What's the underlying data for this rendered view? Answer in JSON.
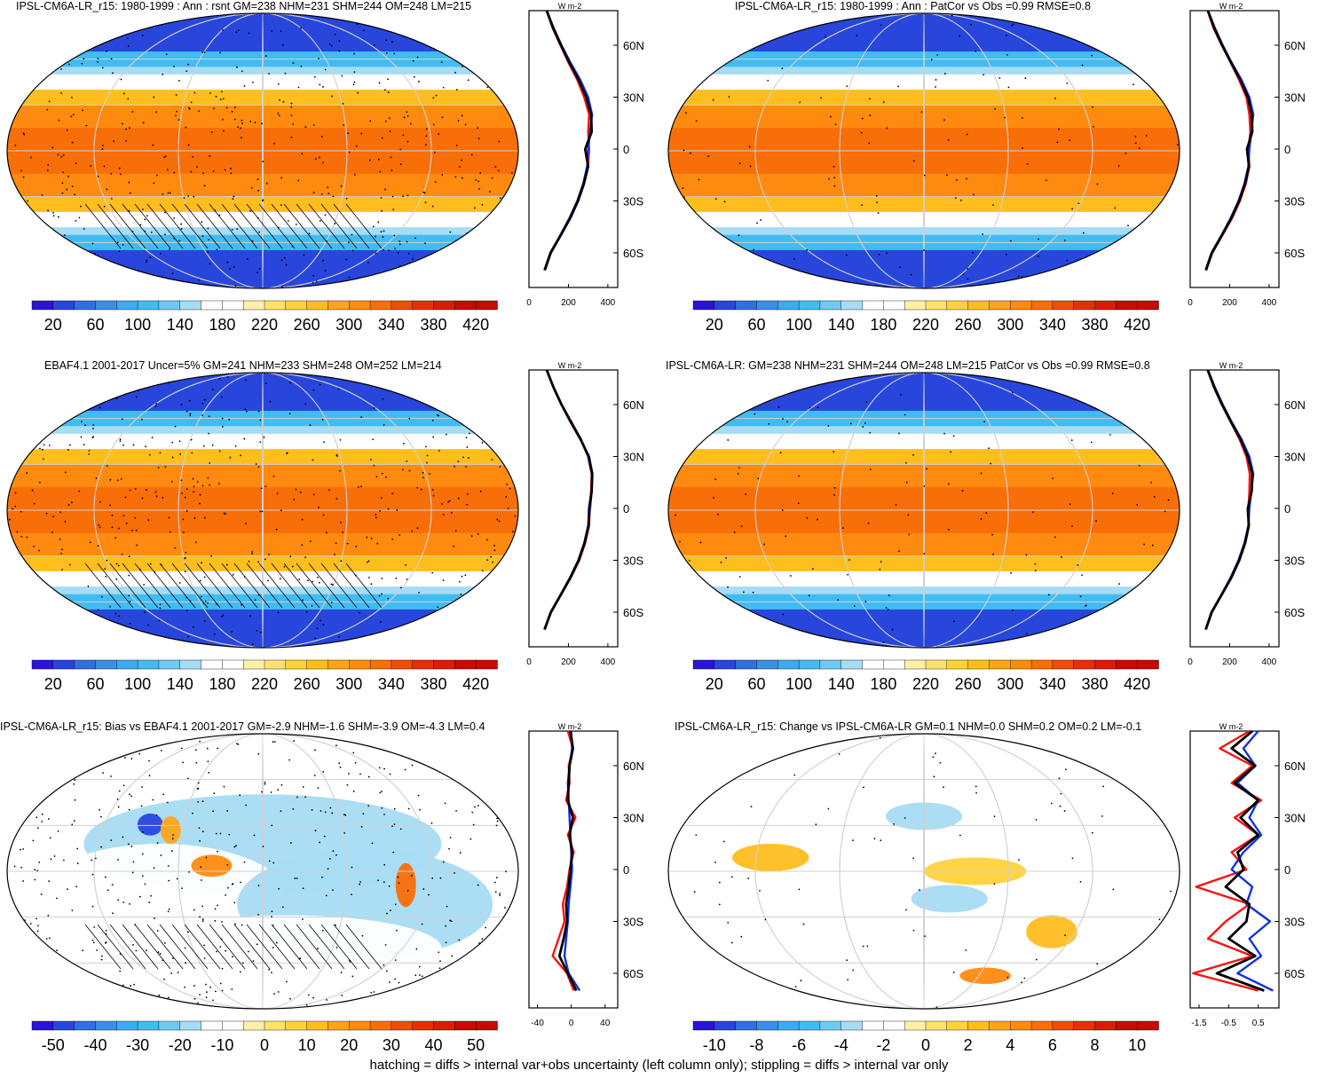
{
  "footnote": "hatching = diffs > internal var+obs uncertainty (left column only); stippling = diffs > internal var only",
  "colors": {
    "abs_scale": [
      "#2a14d8",
      "#2846dc",
      "#2f6fe0",
      "#3a8fe6",
      "#3eaaf0",
      "#41bcf3",
      "#6fcaf2",
      "#a6dcf4",
      "#ffffff",
      "#ffffff",
      "#fff0a8",
      "#ffe26c",
      "#ffd23d",
      "#ffbe1e",
      "#ffa41a",
      "#ff8a10",
      "#f86e08",
      "#ee4e06",
      "#e63004",
      "#dc1c02",
      "#c80a02"
    ],
    "diff_scale": [
      "#2a14d8",
      "#2846dc",
      "#2f6fe0",
      "#3a8fe6",
      "#3eaaf0",
      "#41bcf3",
      "#6fcaf2",
      "#a6dcf4",
      "#ffffff",
      "#ffffff",
      "#fff0a8",
      "#ffe26c",
      "#ffd23d",
      "#ffbe1e",
      "#ffa41a",
      "#ff8a10",
      "#f86e08",
      "#ee4e06",
      "#e63004",
      "#dc1c02",
      "#c80a02"
    ],
    "line_red": "#ff1010",
    "line_blue": "#1030e0",
    "line_black": "#000000"
  },
  "chart_data": [
    {
      "type": "heatmap",
      "title": "IPSL-CM6A-LR_r15: 1980-1999 : Ann : rsnt GM=238 NHM=231 SHM=244 OM=248 LM=215",
      "colorbar_ticks": [
        "20",
        "60",
        "100",
        "140",
        "180",
        "220",
        "260",
        "300",
        "340",
        "380",
        "420"
      ],
      "colorbar_range": [
        0,
        440
      ],
      "field": "absolute",
      "hatching": true,
      "stippling": true,
      "profile": {
        "type": "line",
        "unit": "W m-2",
        "xlim": [
          0,
          450
        ],
        "xticks": [
          "0",
          "200",
          "400"
        ],
        "yticks": [
          "60N",
          "30N",
          "0",
          "30S",
          "60S"
        ],
        "lat": [
          80,
          70,
          60,
          50,
          40,
          30,
          20,
          10,
          0,
          -10,
          -20,
          -30,
          -40,
          -50,
          -60,
          -70
        ],
        "series": [
          {
            "color": "red",
            "values": [
              90,
              120,
              160,
              200,
              245,
              280,
              305,
              300,
              305,
              300,
              280,
              250,
              210,
              160,
              110,
              80
            ]
          },
          {
            "color": "blue",
            "values": [
              90,
              125,
              165,
              210,
              260,
              300,
              320,
              310,
              300,
              295,
              275,
              245,
              205,
              158,
              108,
              78
            ]
          },
          {
            "color": "black",
            "values": [
              90,
              122,
              162,
              205,
              252,
              290,
              315,
              318,
              285,
              300,
              278,
              248,
              208,
              160,
              110,
              80
            ]
          }
        ]
      }
    },
    {
      "type": "heatmap",
      "title": "IPSL-CM6A-LR_r15: 1980-1999 : Ann : PatCor vs Obs =0.99 RMSE=0.8",
      "colorbar_ticks": [
        "20",
        "60",
        "100",
        "140",
        "180",
        "220",
        "260",
        "300",
        "340",
        "380",
        "420"
      ],
      "colorbar_range": [
        0,
        440
      ],
      "field": "absolute",
      "hatching": false,
      "stippling": true,
      "profile": {
        "type": "line",
        "unit": "W m-2",
        "xlim": [
          0,
          450
        ],
        "xticks": [
          "0",
          "200",
          "400"
        ],
        "yticks": [
          "60N",
          "30N",
          "0",
          "30S",
          "60S"
        ],
        "lat": [
          80,
          70,
          60,
          50,
          40,
          30,
          20,
          10,
          0,
          -10,
          -20,
          -30,
          -40,
          -50,
          -60,
          -70
        ],
        "series": [
          {
            "color": "red",
            "values": [
              88,
              118,
              160,
              205,
              248,
              285,
              300,
              305,
              295,
              300,
              282,
              252,
              212,
              162,
              112,
              80
            ]
          },
          {
            "color": "blue",
            "values": [
              90,
              125,
              165,
              210,
              260,
              300,
              320,
              310,
              300,
              295,
              275,
              245,
              205,
              158,
              108,
              78
            ]
          },
          {
            "color": "black",
            "values": [
              90,
              122,
              162,
              207,
              254,
              292,
              312,
              315,
              288,
              298,
              278,
              248,
              208,
              160,
              110,
              80
            ]
          }
        ]
      }
    },
    {
      "type": "heatmap",
      "title": "EBAF4.1 2001-2017 Uncer=5% GM=241 NHM=233 SHM=248 OM=252 LM=214",
      "colorbar_ticks": [
        "20",
        "60",
        "100",
        "140",
        "180",
        "220",
        "260",
        "300",
        "340",
        "380",
        "420"
      ],
      "colorbar_range": [
        0,
        440
      ],
      "field": "absolute",
      "hatching": true,
      "stippling": true,
      "profile": {
        "type": "line",
        "unit": "W m-2",
        "xlim": [
          0,
          450
        ],
        "xticks": [
          "0",
          "200",
          "400"
        ],
        "yticks": [
          "60N",
          "30N",
          "0",
          "30S",
          "60S"
        ],
        "lat": [
          80,
          70,
          60,
          50,
          40,
          30,
          20,
          10,
          0,
          -10,
          -20,
          -30,
          -40,
          -50,
          -60,
          -70
        ],
        "series": [
          {
            "color": "red",
            "values": [
              90,
              125,
              165,
              215,
              262,
              300,
              318,
              315,
              308,
              305,
              285,
              255,
              212,
              162,
              112,
              80
            ]
          },
          {
            "color": "blue",
            "values": [
              90,
              125,
              165,
              210,
              260,
              305,
              322,
              318,
              310,
              300,
              280,
              250,
              208,
              160,
              110,
              78
            ]
          },
          {
            "color": "black",
            "values": [
              90,
              124,
              165,
              212,
              262,
              302,
              320,
              318,
              305,
              302,
              282,
              252,
              210,
              161,
              111,
              79
            ]
          }
        ]
      }
    },
    {
      "type": "heatmap",
      "title": "IPSL-CM6A-LR: GM=238 NHM=231 SHM=244 OM=248 LM=215 PatCor vs Obs =0.99 RMSE=0.8",
      "colorbar_ticks": [
        "20",
        "60",
        "100",
        "140",
        "180",
        "220",
        "260",
        "300",
        "340",
        "380",
        "420"
      ],
      "colorbar_range": [
        0,
        440
      ],
      "field": "absolute",
      "hatching": false,
      "stippling": true,
      "profile": {
        "type": "line",
        "unit": "W m-2",
        "xlim": [
          0,
          450
        ],
        "xticks": [
          "0",
          "200",
          "400"
        ],
        "yticks": [
          "60N",
          "30N",
          "0",
          "30S",
          "60S"
        ],
        "lat": [
          80,
          70,
          60,
          50,
          40,
          30,
          20,
          10,
          0,
          -10,
          -20,
          -30,
          -40,
          -50,
          -60,
          -70
        ],
        "series": [
          {
            "color": "red",
            "values": [
              88,
              120,
              160,
              205,
              250,
              285,
              302,
              300,
              295,
              298,
              280,
              250,
              210,
              160,
              110,
              80
            ]
          },
          {
            "color": "blue",
            "values": [
              90,
              125,
              165,
              210,
              260,
              300,
              320,
              310,
              300,
              295,
              275,
              245,
              205,
              158,
              108,
              78
            ]
          },
          {
            "color": "black",
            "values": [
              89,
              122,
              162,
              207,
              255,
              292,
              315,
              312,
              292,
              297,
              278,
              248,
              208,
              159,
              109,
              79
            ]
          }
        ]
      }
    },
    {
      "type": "heatmap",
      "title": "IPSL-CM6A-LR_r15: Bias vs EBAF4.1 2001-2017 GM=-2.9 NHM=-1.6 SHM=-3.9 OM=-4.3 LM=0.4",
      "colorbar_ticks": [
        "-50",
        "-40",
        "-30",
        "-20",
        "-10",
        "0",
        "10",
        "20",
        "30",
        "40",
        "50"
      ],
      "colorbar_range": [
        -55,
        55
      ],
      "field": "bias",
      "hatching": true,
      "stippling": true,
      "profile": {
        "type": "line",
        "unit": "W m-2",
        "xlim": [
          -50,
          55
        ],
        "xticks": [
          "-40",
          "0",
          "40"
        ],
        "yticks": [
          "60N",
          "30N",
          "0",
          "30S",
          "60S"
        ],
        "lat": [
          80,
          70,
          60,
          50,
          40,
          30,
          20,
          10,
          0,
          -10,
          -20,
          -30,
          -40,
          -50,
          -60,
          -70
        ],
        "series": [
          {
            "color": "red",
            "values": [
              -4,
              2,
              -3,
              -2,
              -6,
              5,
              -4,
              3,
              -2,
              -5,
              -10,
              -8,
              -15,
              -22,
              -5,
              3
            ]
          },
          {
            "color": "blue",
            "values": [
              0,
              1,
              -2,
              -4,
              -3,
              -2,
              -1,
              0,
              1,
              -1,
              -3,
              -4,
              -6,
              -8,
              -3,
              10
            ]
          },
          {
            "color": "black",
            "values": [
              -1,
              2,
              -2,
              -3,
              -4,
              2,
              -2,
              1,
              -1,
              -3,
              -6,
              -5,
              -9,
              -14,
              -4,
              6
            ]
          }
        ]
      }
    },
    {
      "type": "heatmap",
      "title": "IPSL-CM6A-LR_r15: Change vs IPSL-CM6A-LR GM=0.1 NHM=0.0 SHM=0.2 OM=0.2 LM=-0.1",
      "colorbar_ticks": [
        "-10",
        "-8",
        "-6",
        "-4",
        "-2",
        "0",
        "2",
        "4",
        "6",
        "8",
        "10"
      ],
      "colorbar_range": [
        -11,
        11
      ],
      "field": "change",
      "hatching": false,
      "stippling": true,
      "profile": {
        "type": "line",
        "unit": "W m-2",
        "xlim": [
          -1.8,
          1.2
        ],
        "xticks": [
          "-1.5",
          "-0.5",
          "0.5"
        ],
        "yticks": [
          "60N",
          "30N",
          "0",
          "30S",
          "60S"
        ],
        "lat": [
          80,
          70,
          60,
          50,
          40,
          30,
          20,
          10,
          0,
          -10,
          -20,
          -30,
          -40,
          -50,
          -60,
          -70
        ],
        "series": [
          {
            "color": "red",
            "values": [
              0.2,
              -0.8,
              0.3,
              -0.4,
              0.6,
              -0.3,
              0.5,
              -0.4,
              0.1,
              -1.6,
              0.2,
              -0.6,
              -1.2,
              0.3,
              -1.7,
              0.5
            ]
          },
          {
            "color": "blue",
            "values": [
              0.5,
              0.0,
              0.4,
              -0.2,
              0.5,
              0.2,
              0.6,
              0.0,
              -0.4,
              0.3,
              0.1,
              0.9,
              0.2,
              0.6,
              -0.2,
              1.0
            ]
          },
          {
            "color": "black",
            "values": [
              0.3,
              -0.4,
              0.4,
              -0.3,
              0.5,
              -0.1,
              0.5,
              -0.2,
              0.0,
              -0.6,
              0.2,
              0.1,
              -0.5,
              0.4,
              -0.9,
              0.7
            ]
          }
        ]
      }
    }
  ]
}
